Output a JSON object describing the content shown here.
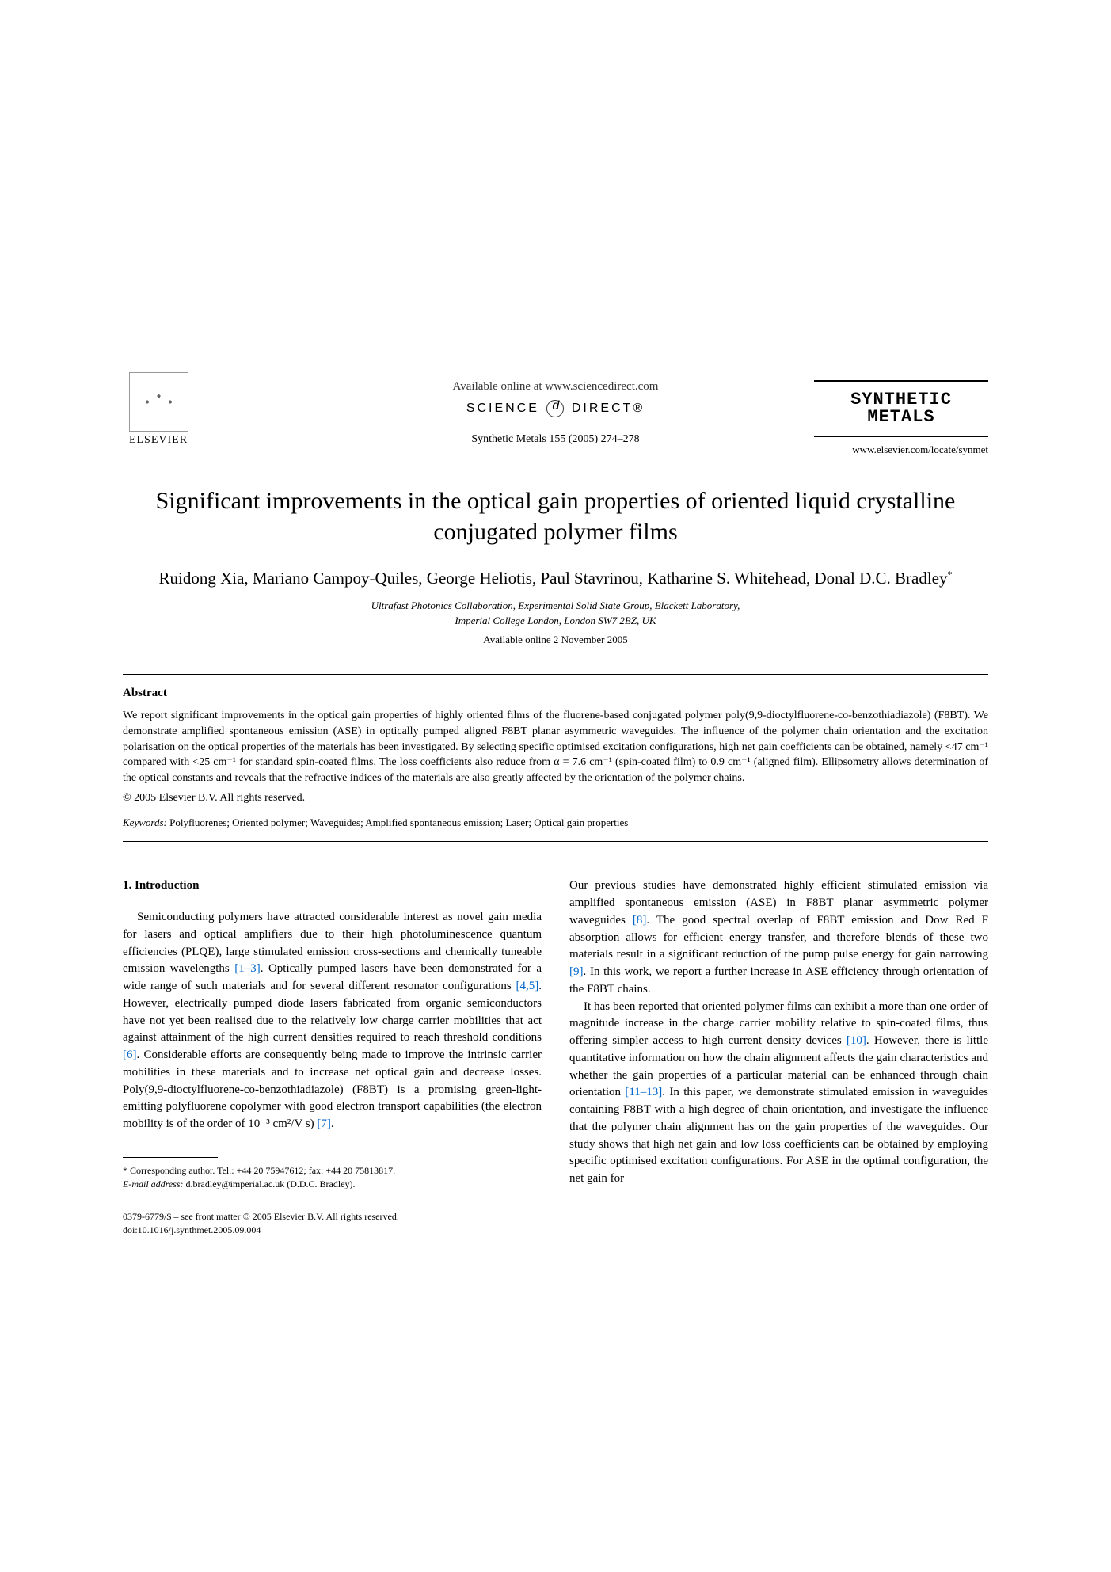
{
  "header": {
    "available_online": "Available online at www.sciencedirect.com",
    "science_direct_left": "SCIENCE",
    "science_direct_right": "DIRECT®",
    "journal_ref": "Synthetic Metals 155 (2005) 274–278",
    "elsevier": "ELSEVIER",
    "journal_logo_line1": "SYNTHETIC",
    "journal_logo_line2": "METALS",
    "journal_url": "www.elsevier.com/locate/synmet"
  },
  "title": "Significant improvements in the optical gain properties of oriented liquid crystalline conjugated polymer films",
  "authors": "Ruidong Xia, Mariano Campoy-Quiles, George Heliotis, Paul Stavrinou, Katharine S. Whitehead, Donal D.C. Bradley",
  "corresponding_mark": "*",
  "affiliation_line1": "Ultrafast Photonics Collaboration, Experimental Solid State Group, Blackett Laboratory,",
  "affiliation_line2": "Imperial College London, London SW7 2BZ, UK",
  "available_date": "Available online 2 November 2005",
  "abstract": {
    "heading": "Abstract",
    "text": "We report significant improvements in the optical gain properties of highly oriented films of the fluorene-based conjugated polymer poly(9,9-dioctylfluorene-co-benzothiadiazole) (F8BT). We demonstrate amplified spontaneous emission (ASE) in optically pumped aligned F8BT planar asymmetric waveguides. The influence of the polymer chain orientation and the excitation polarisation on the optical properties of the materials has been investigated. By selecting specific optimised excitation configurations, high net gain coefficients can be obtained, namely <47 cm⁻¹ compared with <25 cm⁻¹ for standard spin-coated films. The loss coefficients also reduce from α = 7.6 cm⁻¹ (spin-coated film) to 0.9 cm⁻¹ (aligned film). Ellipsometry allows determination of the optical constants and reveals that the refractive indices of the materials are also greatly affected by the orientation of the polymer chains.",
    "copyright": "© 2005 Elsevier B.V. All rights reserved."
  },
  "keywords": {
    "label": "Keywords:",
    "text": "Polyfluorenes; Oriented polymer; Waveguides; Amplified spontaneous emission; Laser; Optical gain properties"
  },
  "section1": {
    "heading": "1. Introduction",
    "col1_p1_a": "Semiconducting polymers have attracted considerable interest as novel gain media for lasers and optical amplifiers due to their high photoluminescence quantum efficiencies (PLQE), large stimulated emission cross-sections and chemically tuneable emission wavelengths ",
    "col1_ref1": "[1–3]",
    "col1_p1_b": ". Optically pumped lasers have been demonstrated for a wide range of such materials and for several different resonator configurations ",
    "col1_ref2": "[4,5]",
    "col1_p1_c": ". However, electrically pumped diode lasers fabricated from organic semiconductors have not yet been realised due to the relatively low charge carrier mobilities that act against attainment of the high current densities required to reach threshold conditions ",
    "col1_ref3": "[6]",
    "col1_p1_d": ". Considerable efforts are consequently being made to improve the intrinsic carrier mobilities in these materials and to increase net optical gain and decrease losses. Poly(9,9-dioctylfluorene-co-benzothiadiazole) (F8BT) is a promising green-light-emitting polyfluorene copolymer with good electron transport capabilities (the electron mobility is of the order of 10⁻³ cm²/V s) ",
    "col1_ref4": "[7]",
    "col1_p1_e": ".",
    "col2_p1_a": "Our previous studies have demonstrated highly efficient stimulated emission via amplified spontaneous emission (ASE) in F8BT planar asymmetric polymer waveguides ",
    "col2_ref1": "[8]",
    "col2_p1_b": ". The good spectral overlap of F8BT emission and Dow Red F absorption allows for efficient energy transfer, and therefore blends of these two materials result in a significant reduction of the pump pulse energy for gain narrowing ",
    "col2_ref2": "[9]",
    "col2_p1_c": ". In this work, we report a further increase in ASE efficiency through orientation of the F8BT chains.",
    "col2_p2_a": "It has been reported that oriented polymer films can exhibit a more than one order of magnitude increase in the charge carrier mobility relative to spin-coated films, thus offering simpler access to high current density devices ",
    "col2_ref3": "[10]",
    "col2_p2_b": ". However, there is little quantitative information on how the chain alignment affects the gain characteristics and whether the gain properties of a particular material can be enhanced through chain orientation ",
    "col2_ref4": "[11–13]",
    "col2_p2_c": ". In this paper, we demonstrate stimulated emission in waveguides containing F8BT with a high degree of chain orientation, and investigate the influence that the polymer chain alignment has on the gain properties of the waveguides. Our study shows that high net gain and low loss coefficients can be obtained by employing specific optimised excitation configurations. For ASE in the optimal configuration, the net gain for"
  },
  "footnote": {
    "corresponding": "* Corresponding author. Tel.: +44 20 75947612; fax: +44 20 75813817.",
    "email_label": "E-mail address:",
    "email": "d.bradley@imperial.ac.uk (D.D.C. Bradley)."
  },
  "footer": {
    "line1": "0379-6779/$ – see front matter © 2005 Elsevier B.V. All rights reserved.",
    "line2": "doi:10.1016/j.synthmet.2005.09.004"
  },
  "colors": {
    "text": "#000000",
    "link": "#0066cc",
    "background": "#ffffff"
  }
}
